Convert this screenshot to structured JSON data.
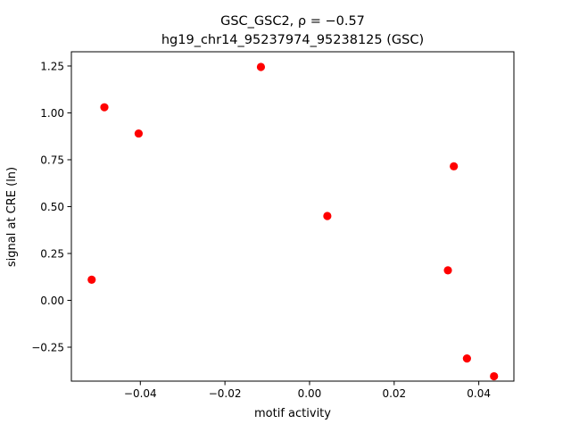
{
  "chart_data": {
    "type": "scatter",
    "title_line1": "GSC_GSC2, ρ = −0.57",
    "title_line2": "hg19_chr14_95237974_95238125 (GSC)",
    "xlabel": "motif activity",
    "ylabel": "signal at CRE (ln)",
    "xlim": [
      -0.0563,
      0.0483
    ],
    "ylim": [
      -0.431,
      1.326
    ],
    "xticks": [
      -0.04,
      -0.02,
      0.0,
      0.02,
      0.04
    ],
    "xtick_labels": [
      "−0.04",
      "−0.02",
      "0.00",
      "0.02",
      "0.04"
    ],
    "yticks": [
      -0.25,
      0.0,
      0.25,
      0.5,
      0.75,
      1.0,
      1.25
    ],
    "ytick_labels": [
      "−0.25",
      "0.00",
      "0.25",
      "0.50",
      "0.75",
      "1.00",
      "1.25"
    ],
    "grid": false,
    "marker_color": "#ff0000",
    "points": [
      {
        "x": -0.0515,
        "y": 0.11
      },
      {
        "x": -0.0485,
        "y": 1.03
      },
      {
        "x": -0.0404,
        "y": 0.89
      },
      {
        "x": -0.0115,
        "y": 1.245
      },
      {
        "x": 0.0042,
        "y": 0.45
      },
      {
        "x": 0.0327,
        "y": 0.16
      },
      {
        "x": 0.0341,
        "y": 0.715
      },
      {
        "x": 0.0372,
        "y": -0.31
      },
      {
        "x": 0.0436,
        "y": -0.405
      }
    ]
  }
}
